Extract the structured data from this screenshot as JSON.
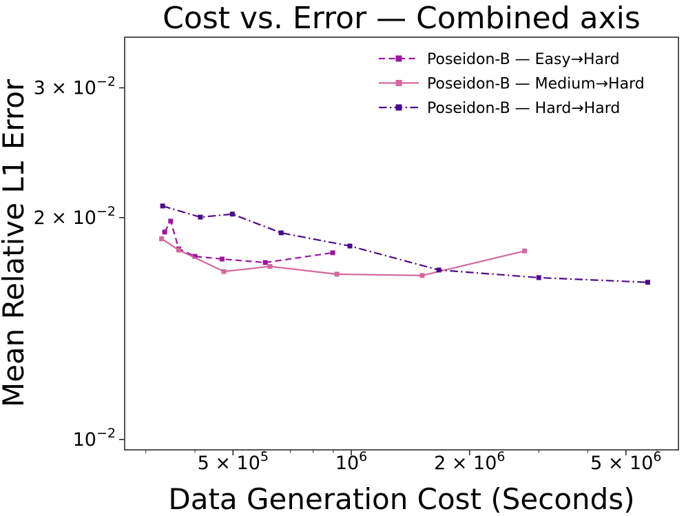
{
  "figure": {
    "title": "Cost vs. Error — Combined axis"
  },
  "chart_data": {
    "type": "line",
    "title": "Cost vs. Error — Combined axis",
    "xlabel": "Data Generation Cost (Seconds)",
    "ylabel": "Mean Relative L1 Error",
    "x_scale": "log",
    "y_scale": "log",
    "xlim": [
      265000,
      6800000
    ],
    "ylim": [
      0.00968,
      0.03514
    ],
    "grid": false,
    "legend_position": "upper right",
    "legend_frame": false,
    "axis_color": "#2b2b2b",
    "x_ticks": [
      {
        "value": 500000,
        "base": "5 × 10",
        "sup": "5"
      },
      {
        "value": 1000000,
        "base": "10",
        "sup": "6"
      },
      {
        "value": 2000000,
        "base": "2 × 10",
        "sup": "6"
      },
      {
        "value": 5000000,
        "base": "5 × 10",
        "sup": "6"
      }
    ],
    "x_minor_ticks": [
      300000,
      400000,
      600000,
      700000,
      800000,
      900000,
      3000000,
      4000000,
      6000000
    ],
    "y_ticks": [
      {
        "value": 0.01,
        "base": "10",
        "sup": "−2"
      },
      {
        "value": 0.02,
        "base": "2 × 10",
        "sup": "−2"
      },
      {
        "value": 0.03,
        "base": "3 × 10",
        "sup": "−2"
      }
    ],
    "series": [
      {
        "key": "easy-to-hard",
        "name": "Poseidon-B — Easy→Hard",
        "color": "#9c179e",
        "line_style": "dashed",
        "marker": "square",
        "points": [
          [
            335000,
            0.01912
          ],
          [
            347000,
            0.01978
          ],
          [
            364000,
            0.01814
          ],
          [
            400000,
            0.01772
          ],
          [
            469000,
            0.01757
          ],
          [
            604000,
            0.01738
          ],
          [
            897000,
            0.01792
          ]
        ]
      },
      {
        "key": "medium-to-hard",
        "name": "Poseidon-B — Medium→Hard",
        "color": "#d4679c",
        "line_style": "solid",
        "marker": "square",
        "points": [
          [
            329000,
            0.01872
          ],
          [
            364000,
            0.01807
          ],
          [
            474000,
            0.0169
          ],
          [
            621000,
            0.01717
          ],
          [
            919000,
            0.01676
          ],
          [
            1515000,
            0.01669
          ],
          [
            2760000,
            0.01802
          ]
        ]
      },
      {
        "key": "hard-to-hard",
        "name": "Poseidon-B — Hard→Hard",
        "color": "#4a0b8a",
        "line_style": "dashdot",
        "marker": "square",
        "points": [
          [
            331000,
            0.02074
          ],
          [
            413000,
            0.02003
          ],
          [
            498000,
            0.02022
          ],
          [
            663000,
            0.01907
          ],
          [
            992000,
            0.0183
          ],
          [
            1670000,
            0.01698
          ],
          [
            3000000,
            0.01658
          ],
          [
            5680000,
            0.01634
          ]
        ]
      }
    ]
  }
}
